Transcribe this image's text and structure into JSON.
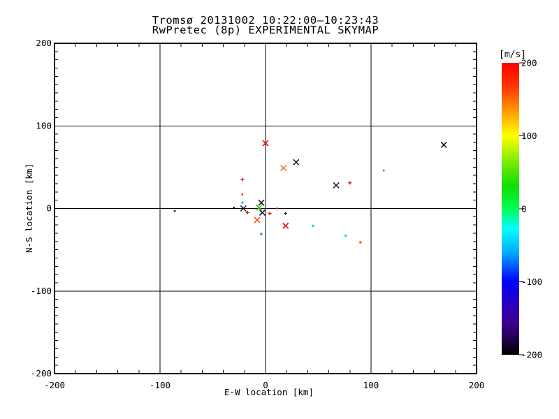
{
  "chart_data": {
    "type": "scatter",
    "title": "Tromsø 20131002 10:22:00–10:23:43",
    "subtitle": "RwPretec (8p) EXPERIMENTAL SKYMAP",
    "xlabel": "E-W location [km]",
    "ylabel": "N-S location [km]",
    "xlim": [
      -200,
      200
    ],
    "ylim": [
      -200,
      200
    ],
    "x_ticks": [
      -200,
      -100,
      0,
      100,
      200
    ],
    "y_ticks": [
      -200,
      -100,
      0,
      100,
      200
    ],
    "x_minor_step": 20,
    "y_minor_step": 10,
    "grid_lines": [
      -100,
      0,
      100
    ],
    "grid_on": true,
    "legend_position": "none",
    "points": [
      {
        "x": 0,
        "y": 79,
        "marker": "x",
        "color": "#ee0000",
        "s": 4
      },
      {
        "x": 169,
        "y": 77,
        "marker": "x",
        "color": "#101010",
        "s": 4
      },
      {
        "x": 29,
        "y": 56,
        "marker": "x",
        "color": "#101010",
        "s": 4
      },
      {
        "x": 17,
        "y": 49,
        "marker": "x",
        "color": "#f07820",
        "s": 4
      },
      {
        "x": 112,
        "y": 46,
        "marker": "dot",
        "color": "#ee1100",
        "s": 1.2
      },
      {
        "x": -22,
        "y": 35,
        "marker": "plus",
        "color": "#ee0000",
        "s": 2.5
      },
      {
        "x": 80,
        "y": 31,
        "marker": "plus",
        "color": "#ee0000",
        "s": 2.5
      },
      {
        "x": 67,
        "y": 28,
        "marker": "x",
        "color": "#101010",
        "s": 4
      },
      {
        "x": -22,
        "y": 17,
        "marker": "dot",
        "color": "#ee1100",
        "s": 1.2
      },
      {
        "x": -22,
        "y": 7,
        "marker": "plus",
        "color": "#00aaff",
        "s": 2
      },
      {
        "x": -4,
        "y": 7,
        "marker": "x",
        "color": "#101010",
        "s": 4
      },
      {
        "x": -6,
        "y": 1,
        "marker": "x",
        "color": "#22cc00",
        "s": 4
      },
      {
        "x": -30,
        "y": 1,
        "marker": "dot",
        "color": "#101010",
        "s": 1.2
      },
      {
        "x": -21,
        "y": 0,
        "marker": "x",
        "color": "#101010",
        "s": 4
      },
      {
        "x": 11,
        "y": 0,
        "marker": "dot",
        "color": "#ee1100",
        "s": 1.2
      },
      {
        "x": -86,
        "y": -3,
        "marker": "plus",
        "color": "#101010",
        "s": 1.5
      },
      {
        "x": -17,
        "y": -5,
        "marker": "plus",
        "color": "#ee0000",
        "s": 2.5
      },
      {
        "x": -3,
        "y": -5,
        "marker": "x",
        "color": "#101010",
        "s": 4
      },
      {
        "x": 4,
        "y": -6,
        "marker": "plus",
        "color": "#ee0000",
        "s": 2.5
      },
      {
        "x": 19,
        "y": -6,
        "marker": "plus",
        "color": "#101010",
        "s": 2
      },
      {
        "x": -8,
        "y": -14,
        "marker": "x",
        "color": "#e85010",
        "s": 4
      },
      {
        "x": 19,
        "y": -21,
        "marker": "x",
        "color": "#ee0000",
        "s": 4
      },
      {
        "x": 45,
        "y": -21,
        "marker": "dot",
        "color": "#00e080",
        "s": 1.5
      },
      {
        "x": -4,
        "y": -31,
        "marker": "plus",
        "color": "#0077ff",
        "s": 2
      },
      {
        "x": 76,
        "y": -33,
        "marker": "dot",
        "color": "#00ddaa",
        "s": 1.5
      },
      {
        "x": 90,
        "y": -41,
        "marker": "dot",
        "color": "#ff4400",
        "s": 1.5
      }
    ],
    "colorbar": {
      "label": "[m/s]",
      "min": -200,
      "max": 200,
      "ticks": [
        200,
        100,
        0,
        -100,
        -200
      ],
      "stops": [
        [
          "0.00",
          "#ff0000"
        ],
        [
          "0.08",
          "#ff3300"
        ],
        [
          "0.15",
          "#ff8800"
        ],
        [
          "0.25",
          "#ffff00"
        ],
        [
          "0.33",
          "#88ee00"
        ],
        [
          "0.42",
          "#11dd00"
        ],
        [
          "0.50",
          "#00ff55"
        ],
        [
          "0.57",
          "#00ffff"
        ],
        [
          "0.65",
          "#00aaff"
        ],
        [
          "0.75",
          "#0000ff"
        ],
        [
          "0.83",
          "#2a00bb"
        ],
        [
          "0.89",
          "#3c0090"
        ],
        [
          "0.95",
          "#1d0048"
        ],
        [
          "1.00",
          "#000000"
        ]
      ]
    }
  }
}
